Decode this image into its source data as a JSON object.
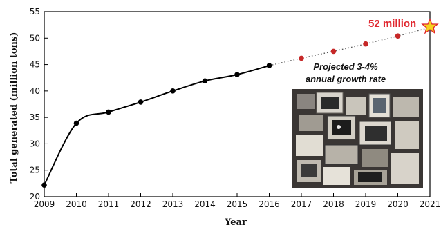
{
  "chart_data": {
    "type": "line",
    "xlabel": "Year",
    "ylabel": "Total generated (million tons)",
    "xlim": [
      2009,
      2021
    ],
    "ylim": [
      20,
      55
    ],
    "x_ticks": [
      "2009",
      "2010",
      "2011",
      "2012",
      "2013",
      "2014",
      "2015",
      "2016",
      "2017",
      "2018",
      "2019",
      "2020",
      "2021"
    ],
    "y_ticks": [
      "20",
      "25",
      "30",
      "35",
      "40",
      "45",
      "50",
      "55"
    ],
    "series": [
      {
        "style": "solid",
        "color": "#000000",
        "x": [
          2009,
          2010,
          2011,
          2012,
          2013,
          2014,
          2015,
          2016
        ],
        "y": [
          22.2,
          33.9,
          36.0,
          37.9,
          40.0,
          41.9,
          43.1,
          44.8
        ]
      },
      {
        "style": "dotted",
        "color": "#c62828",
        "x": [
          2017,
          2018,
          2019,
          2020,
          2021
        ],
        "y": [
          46.2,
          47.5,
          48.9,
          50.4,
          52.0
        ]
      }
    ],
    "annotations": {
      "projection_line1": "Projected 3-4%",
      "projection_line2": "annual growth rate",
      "endpoint_label": "52 million"
    },
    "endpoint_marker": "star-icon",
    "inset_photo": "e-waste-photo",
    "grid": false
  }
}
